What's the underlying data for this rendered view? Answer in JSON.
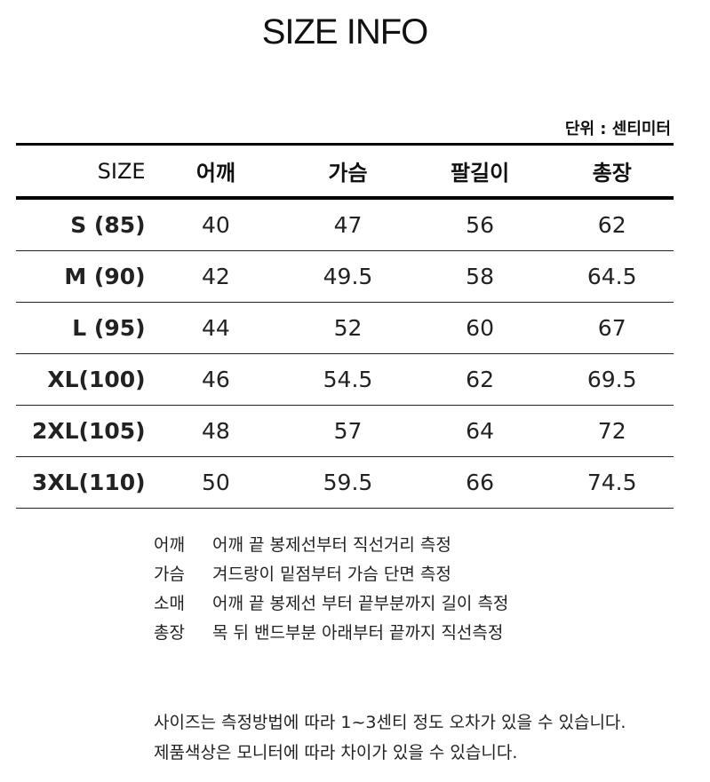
{
  "title": "SIZE INFO",
  "unit": "단위 : 센티미터",
  "headers": [
    "SIZE",
    "어깨",
    "가슴",
    "팔길이",
    "총장"
  ],
  "rows": [
    [
      "S (85)",
      "40",
      "47",
      "56",
      "62"
    ],
    [
      "M (90)",
      "42",
      "49.5",
      "58",
      "64.5"
    ],
    [
      "L (95)",
      "44",
      "52",
      "60",
      "67"
    ],
    [
      "XL(100)",
      "46",
      "54.5",
      "62",
      "69.5"
    ],
    [
      "2XL(105)",
      "48",
      "57",
      "64",
      "72"
    ],
    [
      "3XL(110)",
      "50",
      "59.5",
      "66",
      "74.5"
    ]
  ],
  "notes": [
    {
      "label": "어깨",
      "text": "어깨 끝 봉제선부터 직선거리 측정"
    },
    {
      "label": "가슴",
      "text": "겨드랑이 밑점부터 가슴 단면 측정"
    },
    {
      "label": "소매",
      "text": "어깨 끝 봉제선 부터 끝부분까지 길이 측정"
    },
    {
      "label": "총장",
      "text": "목 뒤 밴드부분 아래부터 끝까지 직선측정"
    }
  ],
  "footer": [
    "사이즈는 측정방법에 따라 1~3센티 정도 오차가 있을 수 있습니다.",
    "제품색상은 모니터에 따라 차이가 있을 수 있습니다."
  ]
}
